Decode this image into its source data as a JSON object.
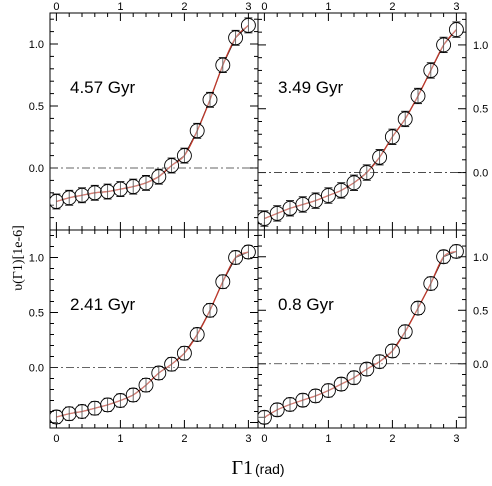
{
  "figure": {
    "ylabel": "υ(Γ1)[1e-6]",
    "xlabel_main": "Γ1",
    "xlabel_unit": "(rad)",
    "colors": {
      "frame": "#000000",
      "fit": "#c0392b",
      "zero": "#333333",
      "marker": "#000000"
    }
  },
  "chart_data": [
    {
      "type": "line",
      "title": "4.57 Gyr",
      "xlim": [
        -0.1,
        3.15
      ],
      "ylim": [
        -0.5,
        1.25
      ],
      "x_ticks": [
        0,
        1,
        2,
        3
      ],
      "y_ticks": [
        0.0,
        0.5,
        1.0
      ],
      "x_ticklabels": [
        "0",
        "1",
        "2",
        "3"
      ],
      "y_ticklabels": [
        "0.0",
        "0.5",
        "1.0"
      ],
      "reference_line": 0.0,
      "series": [
        {
          "x": [
            0.0,
            0.2,
            0.4,
            0.6,
            0.8,
            1.0,
            1.2,
            1.4,
            1.6,
            1.8,
            2.0,
            2.2,
            2.4,
            2.6,
            2.8,
            3.0
          ],
          "y": [
            -0.27,
            -0.24,
            -0.22,
            -0.2,
            -0.19,
            -0.17,
            -0.15,
            -0.12,
            -0.07,
            0.02,
            0.1,
            0.3,
            0.55,
            0.83,
            1.05,
            1.15
          ],
          "yerr": 0.06
        }
      ]
    },
    {
      "type": "line",
      "title": "3.49 Gyr",
      "xlim": [
        -0.1,
        3.15
      ],
      "ylim": [
        -0.45,
        1.25
      ],
      "x_ticks": [
        0,
        1,
        2,
        3
      ],
      "y_ticks": [
        0.0,
        0.5,
        1.0
      ],
      "x_ticklabels": [
        "0",
        "1",
        "2",
        "3"
      ],
      "y_ticklabels": [
        "0.0",
        "0.5",
        "1.0"
      ],
      "reference_line": 0.0,
      "series": [
        {
          "x": [
            0.0,
            0.2,
            0.4,
            0.6,
            0.8,
            1.0,
            1.2,
            1.4,
            1.6,
            1.8,
            2.0,
            2.2,
            2.4,
            2.6,
            2.8,
            3.0
          ],
          "y": [
            -0.36,
            -0.32,
            -0.28,
            -0.25,
            -0.22,
            -0.18,
            -0.14,
            -0.08,
            0.0,
            0.12,
            0.28,
            0.42,
            0.6,
            0.8,
            1.0,
            1.12
          ],
          "yerr": 0.06
        }
      ]
    },
    {
      "type": "line",
      "title": "2.41 Gyr",
      "xlim": [
        -0.1,
        3.15
      ],
      "ylim": [
        -0.55,
        1.25
      ],
      "x_ticks": [
        0,
        1,
        2,
        3
      ],
      "y_ticks": [
        0.0,
        0.5,
        1.0
      ],
      "x_ticklabels": [
        "0",
        "1",
        "2",
        "3"
      ],
      "y_ticklabels": [
        "0.0",
        "0.5",
        "1.0"
      ],
      "reference_line": 0.0,
      "series": [
        {
          "x": [
            0.0,
            0.2,
            0.4,
            0.6,
            0.8,
            1.0,
            1.2,
            1.4,
            1.6,
            1.8,
            2.0,
            2.2,
            2.4,
            2.6,
            2.8,
            3.0
          ],
          "y": [
            -0.45,
            -0.42,
            -0.4,
            -0.37,
            -0.34,
            -0.3,
            -0.25,
            -0.16,
            -0.05,
            0.03,
            0.13,
            0.3,
            0.52,
            0.78,
            1.0,
            1.05
          ],
          "yerr": 0.06
        }
      ]
    },
    {
      "type": "line",
      "title": "0.8 Gyr",
      "xlim": [
        -0.1,
        3.15
      ],
      "ylim": [
        -0.6,
        1.25
      ],
      "x_ticks": [
        0,
        1,
        2,
        3
      ],
      "y_ticks": [
        0.0,
        0.5,
        1.0
      ],
      "x_ticklabels": [
        "0",
        "1",
        "2",
        "3"
      ],
      "y_ticklabels": [
        "0.0",
        "0.5",
        "1.0"
      ],
      "reference_line": 0.0,
      "series": [
        {
          "x": [
            0.0,
            0.2,
            0.4,
            0.6,
            0.8,
            1.0,
            1.2,
            1.4,
            1.6,
            1.8,
            2.0,
            2.2,
            2.4,
            2.6,
            2.8,
            3.0
          ],
          "y": [
            -0.5,
            -0.43,
            -0.38,
            -0.34,
            -0.3,
            -0.25,
            -0.19,
            -0.13,
            -0.05,
            0.02,
            0.12,
            0.3,
            0.52,
            0.75,
            1.0,
            1.05
          ],
          "yerr": 0.06
        }
      ]
    }
  ]
}
